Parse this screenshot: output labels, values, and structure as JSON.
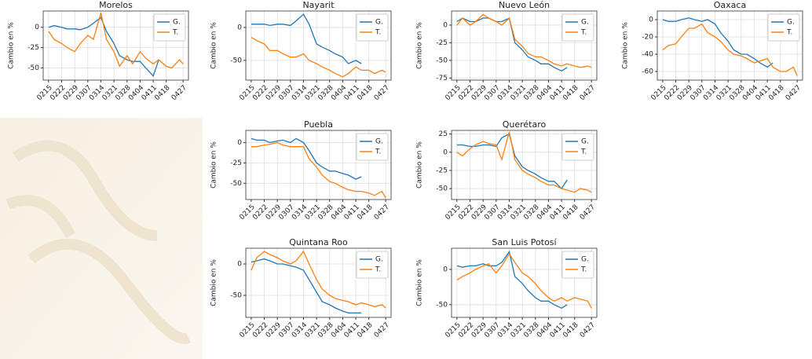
{
  "chart_data": [
    {
      "type": "line",
      "title": "Morelos",
      "ylabel": "Cambio en %",
      "x": [
        "0215",
        "0218",
        "0222",
        "0225",
        "0229",
        "0303",
        "0307",
        "0310",
        "0314",
        "0317",
        "0321",
        "0324",
        "0328",
        "0331",
        "0404",
        "0407",
        "0411",
        "0414",
        "0418",
        "0421",
        "0425",
        "0427"
      ],
      "xticks": [
        "0215",
        "0222",
        "0229",
        "0307",
        "0314",
        "0321",
        "0328",
        "0404",
        "0411",
        "0418",
        "0427"
      ],
      "ylim": [
        -65,
        20
      ],
      "yticks": [
        0,
        -25,
        -50
      ],
      "grid": true,
      "legend": "upper right",
      "series": [
        {
          "name": "G.",
          "color": "#1f77b4",
          "values": [
            0,
            2,
            0,
            -2,
            -2,
            -3,
            0,
            5,
            12,
            -5,
            -20,
            -35,
            -40,
            -42,
            -42,
            -50,
            -60,
            -40,
            null,
            null,
            null,
            null
          ]
        },
        {
          "name": "T.",
          "color": "#ff7f0e",
          "values": [
            -5,
            -15,
            -20,
            -25,
            -30,
            -20,
            -10,
            -15,
            18,
            -15,
            -30,
            -48,
            -35,
            -45,
            -30,
            -38,
            -45,
            -40,
            -48,
            -50,
            -40,
            -45
          ]
        }
      ]
    },
    {
      "type": "line",
      "title": "Nayarit",
      "ylabel": "Cambio en %",
      "x": [
        "0215",
        "0218",
        "0222",
        "0225",
        "0229",
        "0303",
        "0307",
        "0310",
        "0314",
        "0317",
        "0321",
        "0324",
        "0328",
        "0331",
        "0404",
        "0407",
        "0411",
        "0414",
        "0418",
        "0421",
        "0425",
        "0427"
      ],
      "xticks": [
        "0215",
        "0222",
        "0229",
        "0307",
        "0314",
        "0321",
        "0328",
        "0404",
        "0411",
        "0418",
        "0427"
      ],
      "ylim": [
        -80,
        25
      ],
      "yticks": [
        0,
        -50
      ],
      "grid": true,
      "legend": "upper right",
      "series": [
        {
          "name": "G.",
          "color": "#1f77b4",
          "values": [
            5,
            5,
            5,
            3,
            5,
            5,
            3,
            10,
            20,
            5,
            -25,
            -30,
            -35,
            -40,
            -45,
            -55,
            -50,
            -55,
            null,
            null,
            null,
            null
          ]
        },
        {
          "name": "T.",
          "color": "#ff7f0e",
          "values": [
            -15,
            -20,
            -25,
            -35,
            -35,
            -40,
            -45,
            -45,
            -40,
            -50,
            -55,
            -60,
            -65,
            -70,
            -75,
            -70,
            -60,
            -65,
            -65,
            -70,
            -65,
            -68
          ]
        }
      ]
    },
    {
      "type": "line",
      "title": "Nuevo León",
      "ylabel": "Cambio en %",
      "x": [
        "0215",
        "0218",
        "0222",
        "0225",
        "0229",
        "0303",
        "0307",
        "0310",
        "0314",
        "0317",
        "0321",
        "0324",
        "0328",
        "0331",
        "0404",
        "0407",
        "0411",
        "0414",
        "0418",
        "0421",
        "0425",
        "0427"
      ],
      "xticks": [
        "0215",
        "0222",
        "0229",
        "0307",
        "0314",
        "0321",
        "0328",
        "0404",
        "0411",
        "0418",
        "0427"
      ],
      "ylim": [
        -78,
        20
      ],
      "yticks": [
        0,
        -25,
        -50,
        -75
      ],
      "grid": true,
      "legend": "upper right",
      "series": [
        {
          "name": "G.",
          "color": "#1f77b4",
          "values": [
            5,
            10,
            5,
            5,
            10,
            10,
            5,
            5,
            10,
            -25,
            -35,
            -45,
            -50,
            -55,
            -55,
            -60,
            -65,
            -60,
            null,
            null,
            null,
            null
          ]
        },
        {
          "name": "T.",
          "color": "#ff7f0e",
          "values": [
            0,
            10,
            0,
            5,
            15,
            10,
            5,
            0,
            10,
            -20,
            -30,
            -40,
            -45,
            -45,
            -50,
            -55,
            -58,
            -55,
            -58,
            -60,
            -58,
            -60
          ]
        }
      ]
    },
    {
      "type": "line",
      "title": "Oaxaca",
      "ylabel": "Cambio en %",
      "x": [
        "0215",
        "0218",
        "0222",
        "0225",
        "0229",
        "0303",
        "0307",
        "0310",
        "0314",
        "0317",
        "0321",
        "0324",
        "0328",
        "0331",
        "0404",
        "0407",
        "0411",
        "0414",
        "0418",
        "0421",
        "0425",
        "0427"
      ],
      "xticks": [
        "0215",
        "0222",
        "0229",
        "0307",
        "0314",
        "0321",
        "0328",
        "0404",
        "0411",
        "0418",
        "0427"
      ],
      "ylim": [
        -70,
        10
      ],
      "yticks": [
        0,
        -20,
        -40,
        -60
      ],
      "grid": true,
      "legend": "upper right",
      "series": [
        {
          "name": "G.",
          "color": "#1f77b4",
          "values": [
            0,
            -2,
            -2,
            0,
            2,
            0,
            -2,
            0,
            -5,
            -15,
            -25,
            -35,
            -40,
            -40,
            -45,
            -50,
            -55,
            -50,
            null,
            null,
            null,
            null
          ]
        },
        {
          "name": "T.",
          "color": "#ff7f0e",
          "values": [
            -35,
            -30,
            -28,
            -20,
            -10,
            -10,
            -5,
            -15,
            -20,
            -25,
            -35,
            -40,
            -42,
            -45,
            -50,
            -48,
            -45,
            -55,
            -60,
            -60,
            -55,
            -65
          ]
        }
      ]
    },
    {
      "type": "line",
      "title": "Puebla",
      "ylabel": "Cambio en %",
      "x": [
        "0215",
        "0218",
        "0222",
        "0225",
        "0229",
        "0303",
        "0307",
        "0310",
        "0314",
        "0317",
        "0321",
        "0324",
        "0328",
        "0331",
        "0404",
        "0407",
        "0411",
        "0414",
        "0418",
        "0421",
        "0425",
        "0427"
      ],
      "xticks": [
        "0215",
        "0222",
        "0229",
        "0307",
        "0314",
        "0321",
        "0328",
        "0404",
        "0411",
        "0418",
        "0427"
      ],
      "ylim": [
        -70,
        15
      ],
      "yticks": [
        0,
        -25,
        -50
      ],
      "grid": true,
      "legend": "upper right",
      "series": [
        {
          "name": "G.",
          "color": "#1f77b4",
          "values": [
            5,
            3,
            3,
            0,
            2,
            3,
            0,
            5,
            0,
            -10,
            -25,
            -30,
            -35,
            -35,
            -38,
            -40,
            -45,
            -42,
            null,
            null,
            null,
            null
          ]
        },
        {
          "name": "T.",
          "color": "#ff7f0e",
          "values": [
            -5,
            -5,
            -3,
            -2,
            0,
            -3,
            -5,
            -5,
            -5,
            -20,
            -30,
            -40,
            -48,
            -50,
            -55,
            -58,
            -60,
            -60,
            -62,
            -65,
            -60,
            -68
          ]
        }
      ]
    },
    {
      "type": "line",
      "title": "Querétaro",
      "ylabel": "Cambio en %",
      "x": [
        "0215",
        "0218",
        "0222",
        "0225",
        "0229",
        "0303",
        "0307",
        "0310",
        "0314",
        "0317",
        "0321",
        "0324",
        "0328",
        "0331",
        "0404",
        "0407",
        "0411",
        "0414",
        "0418",
        "0421",
        "0425",
        "0427"
      ],
      "xticks": [
        "0215",
        "0222",
        "0229",
        "0307",
        "0314",
        "0321",
        "0328",
        "0404",
        "0411",
        "0418",
        "0427"
      ],
      "ylim": [
        -65,
        30
      ],
      "yticks": [
        25,
        0,
        -25,
        -50
      ],
      "grid": true,
      "legend": "upper right",
      "series": [
        {
          "name": "G.",
          "color": "#1f77b4",
          "values": [
            10,
            10,
            8,
            8,
            10,
            10,
            8,
            20,
            25,
            -5,
            -20,
            -25,
            -30,
            -35,
            -40,
            -40,
            -50,
            -38,
            null,
            null,
            null,
            null
          ]
        },
        {
          "name": "T.",
          "color": "#ff7f0e",
          "values": [
            0,
            -5,
            5,
            10,
            15,
            12,
            10,
            -10,
            28,
            -10,
            -25,
            -30,
            -35,
            -40,
            -45,
            -45,
            -50,
            -52,
            -55,
            -50,
            -52,
            -55
          ]
        }
      ]
    },
    {
      "type": "line",
      "title": "Quintana Roo",
      "ylabel": "Cambio en %",
      "x": [
        "0215",
        "0218",
        "0222",
        "0225",
        "0229",
        "0303",
        "0307",
        "0310",
        "0314",
        "0317",
        "0321",
        "0324",
        "0328",
        "0331",
        "0404",
        "0407",
        "0411",
        "0414",
        "0418",
        "0421",
        "0425",
        "0427"
      ],
      "xticks": [
        "0215",
        "0222",
        "0229",
        "0307",
        "0314",
        "0321",
        "0328",
        "0404",
        "0411",
        "0418",
        "0427"
      ],
      "ylim": [
        -85,
        25
      ],
      "yticks": [
        0,
        -50
      ],
      "grid": true,
      "legend": "upper right",
      "series": [
        {
          "name": "G.",
          "color": "#1f77b4",
          "values": [
            3,
            5,
            8,
            5,
            0,
            0,
            -3,
            -5,
            -10,
            -25,
            -45,
            -60,
            -65,
            -70,
            -75,
            -78,
            -78,
            -78,
            null,
            null,
            null,
            null
          ]
        },
        {
          "name": "T.",
          "color": "#ff7f0e",
          "values": [
            -10,
            10,
            20,
            15,
            10,
            5,
            0,
            5,
            20,
            0,
            -25,
            -40,
            -50,
            -55,
            -58,
            -60,
            -65,
            -62,
            -65,
            -68,
            -65,
            -70
          ]
        }
      ]
    },
    {
      "type": "line",
      "title": "San Luis Potosí",
      "ylabel": "Cambio en %",
      "x": [
        "0215",
        "0218",
        "0222",
        "0225",
        "0229",
        "0303",
        "0307",
        "0310",
        "0314",
        "0317",
        "0321",
        "0324",
        "0328",
        "0331",
        "0404",
        "0407",
        "0411",
        "0414",
        "0418",
        "0421",
        "0425",
        "0427"
      ],
      "xticks": [
        "0215",
        "0222",
        "0229",
        "0307",
        "0314",
        "0321",
        "0328",
        "0404",
        "0411",
        "0418",
        "0427"
      ],
      "ylim": [
        -68,
        30
      ],
      "yticks": [
        0,
        -50
      ],
      "grid": true,
      "legend": "upper right",
      "series": [
        {
          "name": "G.",
          "color": "#1f77b4",
          "values": [
            5,
            3,
            5,
            5,
            8,
            5,
            5,
            10,
            25,
            -10,
            -20,
            -30,
            -40,
            -45,
            -45,
            -50,
            -55,
            -50,
            null,
            null,
            null,
            null
          ]
        },
        {
          "name": "T.",
          "color": "#ff7f0e",
          "values": [
            -15,
            -10,
            -5,
            0,
            5,
            8,
            -5,
            5,
            22,
            10,
            -5,
            -10,
            -20,
            -30,
            -40,
            -45,
            -40,
            -45,
            -40,
            -42,
            -45,
            -55
          ]
        }
      ]
    }
  ]
}
